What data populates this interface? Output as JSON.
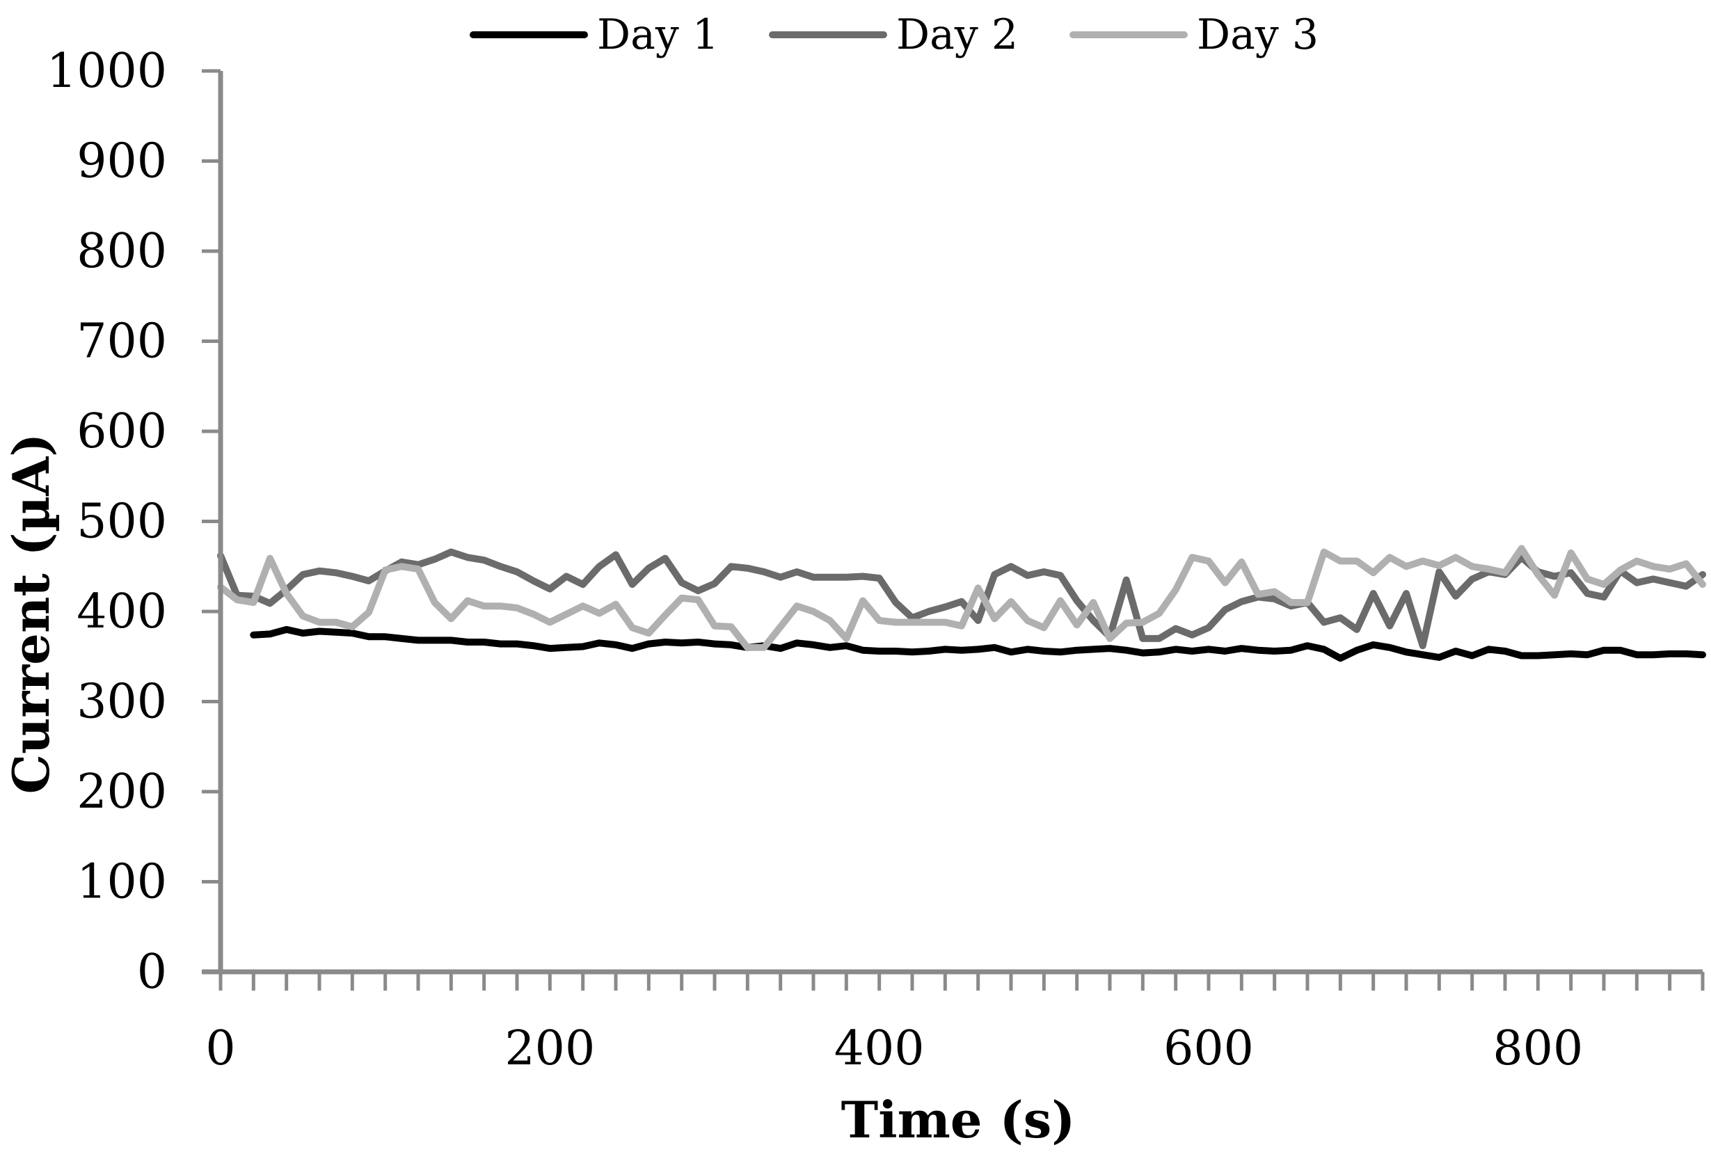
{
  "chart_data": {
    "type": "line",
    "title": "",
    "xlabel": "Time (s)",
    "ylabel": "Current (µA)",
    "xlim": [
      0,
      900
    ],
    "ylim": [
      0,
      1000
    ],
    "x_ticks": [
      0,
      200,
      400,
      600,
      800
    ],
    "x_tick_labels": [
      "0",
      "200",
      "400",
      "600",
      "800"
    ],
    "y_ticks": [
      0,
      100,
      200,
      300,
      400,
      500,
      600,
      700,
      800,
      900,
      1000
    ],
    "y_tick_labels": [
      "0",
      "100",
      "200",
      "300",
      "400",
      "500",
      "600",
      "700",
      "800",
      "900",
      "1000"
    ],
    "grid": false,
    "legend": "top",
    "series": [
      {
        "name": "Day 1",
        "color": "#000000",
        "x": [
          20,
          30,
          40,
          50,
          60,
          70,
          80,
          90,
          100,
          110,
          120,
          130,
          140,
          150,
          160,
          170,
          180,
          190,
          200,
          210,
          220,
          230,
          240,
          250,
          260,
          270,
          280,
          290,
          300,
          310,
          320,
          330,
          340,
          350,
          360,
          370,
          380,
          390,
          400,
          410,
          420,
          430,
          440,
          450,
          460,
          470,
          480,
          490,
          500,
          510,
          520,
          530,
          540,
          550,
          560,
          570,
          580,
          590,
          600,
          610,
          620,
          630,
          640,
          650,
          660,
          670,
          680,
          690,
          700,
          710,
          720,
          730,
          740,
          750,
          760,
          770,
          780,
          790,
          800,
          810,
          820,
          830,
          840,
          850,
          860,
          870,
          880,
          890,
          900
        ],
        "values": [
          374,
          375,
          380,
          376,
          378,
          377,
          376,
          372,
          372,
          370,
          368,
          368,
          368,
          366,
          366,
          364,
          364,
          362,
          359,
          360,
          361,
          365,
          363,
          359,
          364,
          366,
          365,
          366,
          364,
          363,
          360,
          362,
          359,
          365,
          363,
          360,
          362,
          357,
          356,
          356,
          355,
          356,
          358,
          357,
          358,
          360,
          355,
          358,
          356,
          355,
          357,
          358,
          359,
          357,
          354,
          355,
          358,
          356,
          358,
          356,
          359,
          357,
          356,
          357,
          362,
          358,
          348,
          357,
          363,
          360,
          355,
          352,
          349,
          356,
          351,
          358,
          356,
          351,
          351,
          352,
          353,
          352,
          357,
          357,
          352,
          352,
          353,
          353,
          352
        ]
      },
      {
        "name": "Day 2",
        "color": "#6b6b6b",
        "x": [
          0,
          10,
          20,
          30,
          40,
          50,
          60,
          70,
          80,
          90,
          100,
          110,
          120,
          130,
          140,
          150,
          160,
          170,
          180,
          190,
          200,
          210,
          220,
          230,
          240,
          250,
          260,
          270,
          280,
          290,
          300,
          310,
          320,
          330,
          340,
          350,
          360,
          370,
          380,
          390,
          400,
          410,
          420,
          430,
          440,
          450,
          460,
          470,
          480,
          490,
          500,
          510,
          520,
          530,
          540,
          550,
          560,
          570,
          580,
          590,
          600,
          610,
          620,
          630,
          640,
          650,
          660,
          670,
          680,
          690,
          700,
          710,
          720,
          730,
          740,
          750,
          760,
          770,
          780,
          790,
          800,
          810,
          820,
          830,
          840,
          850,
          860,
          870,
          880,
          890,
          900
        ],
        "values": [
          462,
          418,
          417,
          409,
          424,
          441,
          445,
          443,
          439,
          434,
          445,
          455,
          452,
          458,
          466,
          460,
          457,
          450,
          444,
          434,
          425,
          439,
          430,
          450,
          463,
          430,
          448,
          459,
          432,
          423,
          431,
          450,
          448,
          444,
          438,
          444,
          438,
          438,
          438,
          439,
          437,
          410,
          393,
          400,
          405,
          411,
          390,
          441,
          450,
          440,
          444,
          440,
          412,
          390,
          372,
          435,
          370,
          370,
          381,
          374,
          382,
          402,
          411,
          416,
          414,
          406,
          410,
          388,
          393,
          380,
          420,
          384,
          420,
          362,
          444,
          417,
          436,
          444,
          441,
          460,
          444,
          439,
          443,
          420,
          416,
          445,
          432,
          436,
          432,
          428,
          441
        ]
      },
      {
        "name": "Day 3",
        "color": "#b0b0b0",
        "x": [
          0,
          10,
          20,
          30,
          40,
          50,
          60,
          70,
          80,
          90,
          100,
          110,
          120,
          130,
          140,
          150,
          160,
          170,
          180,
          190,
          200,
          210,
          220,
          230,
          240,
          250,
          260,
          270,
          280,
          290,
          300,
          310,
          320,
          330,
          340,
          350,
          360,
          370,
          380,
          390,
          400,
          410,
          420,
          430,
          440,
          450,
          460,
          470,
          480,
          490,
          500,
          510,
          520,
          530,
          540,
          550,
          560,
          570,
          580,
          590,
          600,
          610,
          620,
          630,
          640,
          650,
          660,
          670,
          680,
          690,
          700,
          710,
          720,
          730,
          740,
          750,
          760,
          770,
          780,
          790,
          800,
          810,
          820,
          830,
          840,
          850,
          860,
          870,
          880,
          890,
          900
        ],
        "values": [
          427,
          413,
          410,
          459,
          420,
          395,
          388,
          388,
          383,
          399,
          446,
          450,
          447,
          410,
          392,
          412,
          406,
          406,
          404,
          397,
          388,
          397,
          406,
          398,
          408,
          382,
          376,
          396,
          415,
          413,
          384,
          383,
          360,
          360,
          383,
          406,
          400,
          390,
          370,
          412,
          390,
          388,
          388,
          388,
          388,
          384,
          426,
          392,
          411,
          390,
          382,
          412,
          385,
          410,
          370,
          387,
          388,
          398,
          424,
          460,
          456,
          432,
          455,
          419,
          422,
          410,
          410,
          466,
          456,
          456,
          443,
          460,
          450,
          456,
          451,
          460,
          450,
          447,
          443,
          470,
          441,
          418,
          465,
          436,
          430,
          446,
          456,
          450,
          447,
          453,
          430
        ]
      }
    ]
  }
}
